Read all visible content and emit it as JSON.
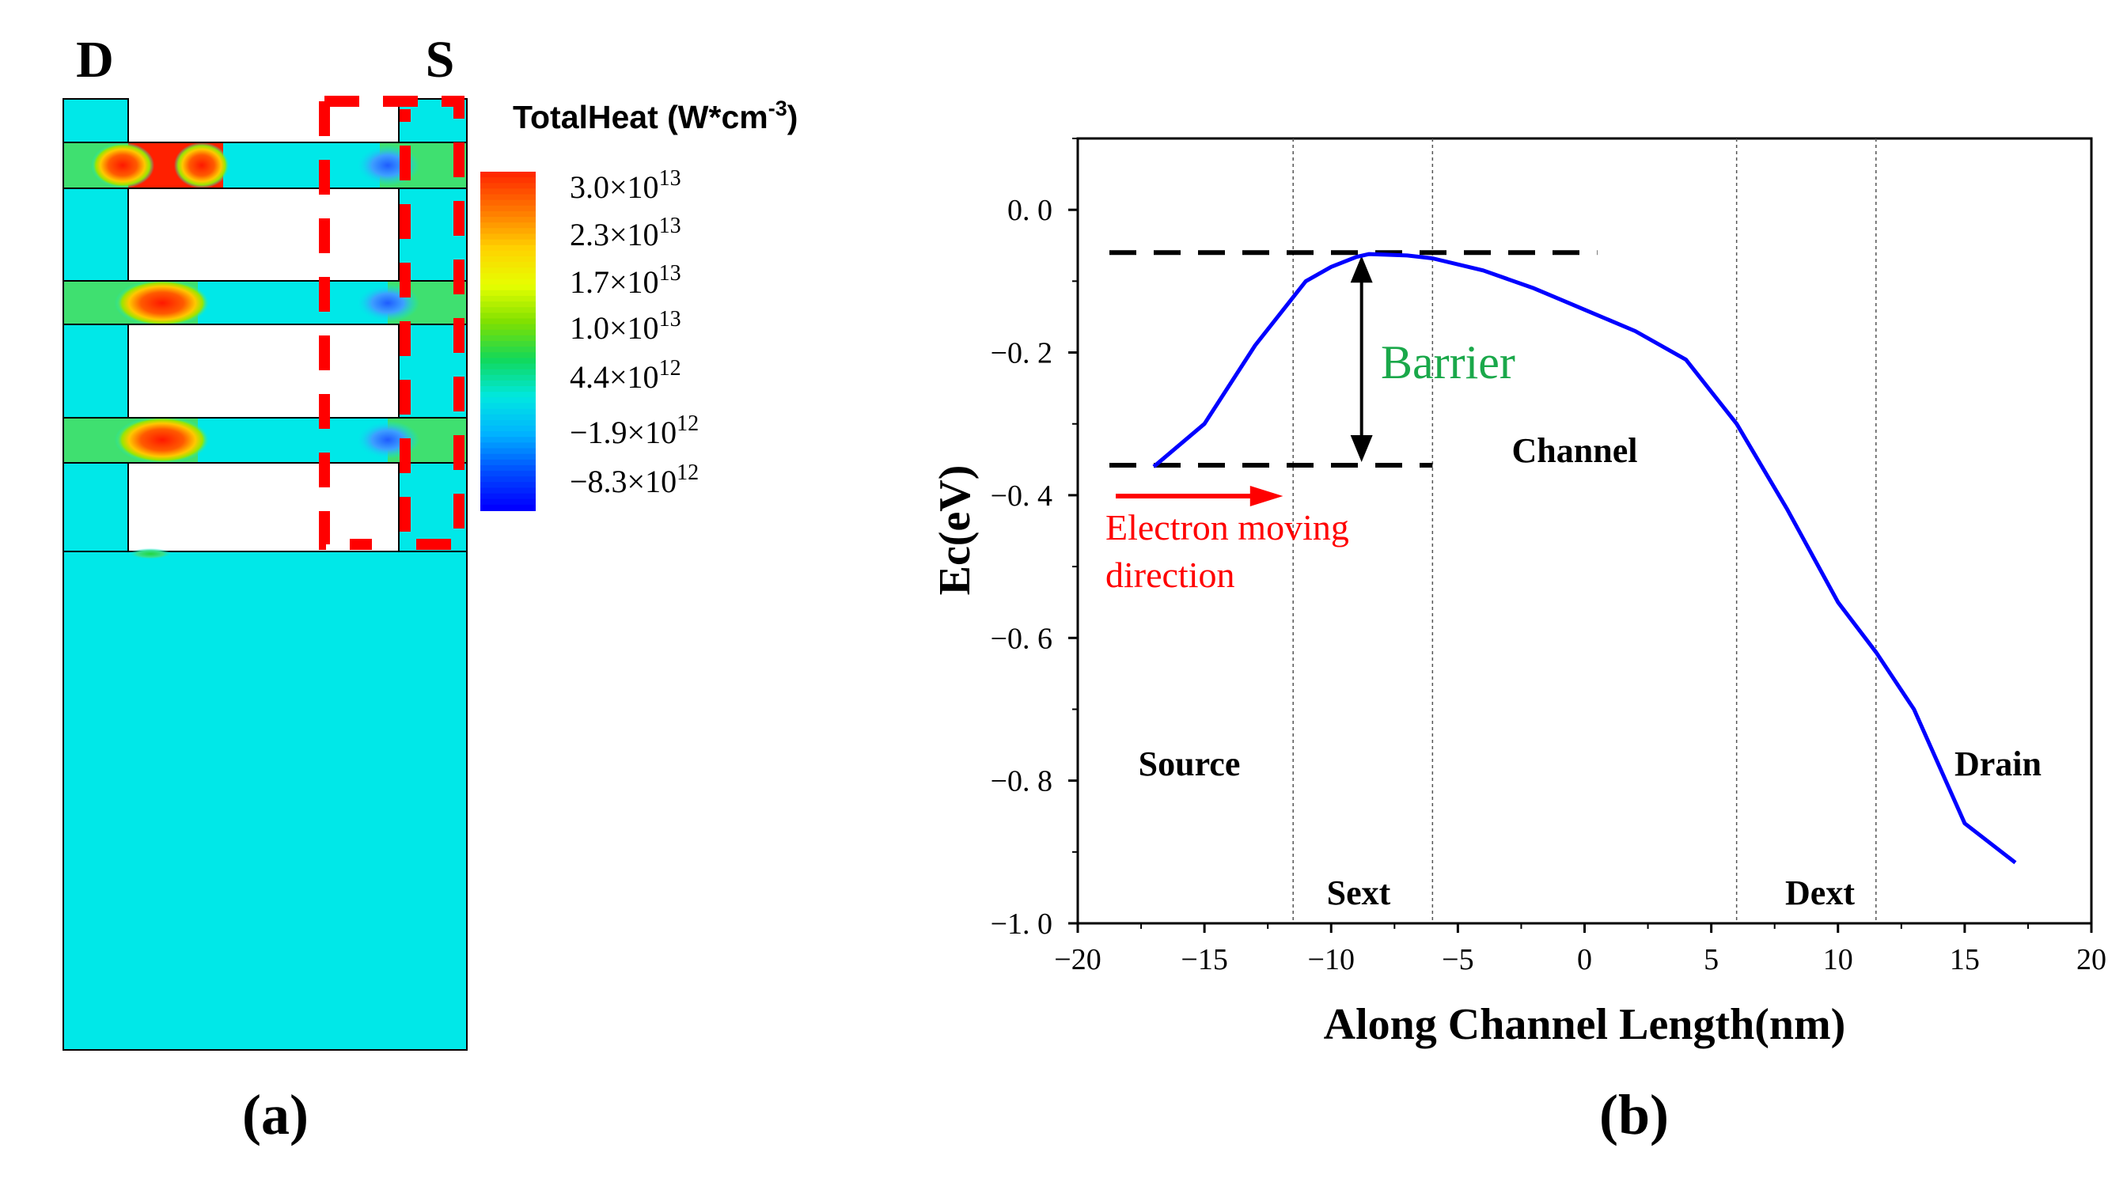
{
  "panel_a": {
    "label": "(a)",
    "left_terminal": "D",
    "right_terminal": "S",
    "colorbar": {
      "title_base": "TotalHeat (W*cm",
      "title_exp": "-3",
      "title_close": ")",
      "ticks": [
        {
          "m": "3.0×10",
          "e": "13"
        },
        {
          "m": "2.3×10",
          "e": "13"
        },
        {
          "m": "1.7×10",
          "e": "13"
        },
        {
          "m": "1.0×10",
          "e": "13"
        },
        {
          "m": "4.4×10",
          "e": "12"
        },
        {
          "m": "−1.9×10",
          "e": "12"
        },
        {
          "m": "−8.3×10",
          "e": "12"
        }
      ],
      "colors": [
        "#ff2a00",
        "#ff7a00",
        "#ffd200",
        "#e6ff00",
        "#7fe000",
        "#11d85a",
        "#00e8e0",
        "#00b4ff",
        "#0050ff",
        "#0000ff"
      ]
    },
    "colors": {
      "background": "#00e8e8",
      "highlight": "#ff0000",
      "outline": "#000000"
    }
  },
  "panel_b": {
    "label": "(b)",
    "regions": {
      "source": "Source",
      "sext": "Sext",
      "channel": "Channel",
      "dext": "Dext",
      "drain": "Drain"
    },
    "annotations": {
      "barrier": "Barrier",
      "electron_1": "Electron moving",
      "electron_2": "direction"
    },
    "colors": {
      "curve": "#0000ff",
      "barrier_text": "#1aa84a",
      "electron": "#ff0000"
    }
  },
  "chart_data": {
    "type": "line",
    "title": "",
    "xlabel": "Along Channel Length(nm)",
    "ylabel": "Ec(eV)",
    "xlim": [
      -20,
      20
    ],
    "ylim": [
      -1.0,
      0.1
    ],
    "xticks": [
      -20,
      -15,
      -10,
      -5,
      0,
      5,
      10,
      15,
      20
    ],
    "xtick_labels": [
      "−20",
      "−15",
      "−10",
      "−5",
      "0",
      "5",
      "10",
      "15",
      "20"
    ],
    "yticks": [
      0.0,
      -0.2,
      -0.4,
      -0.6,
      -0.8,
      -1.0
    ],
    "ytick_labels": [
      "0. 0",
      "−0. 2",
      "−0. 4",
      "−0. 6",
      "−0. 8",
      "−1. 0"
    ],
    "region_boundaries": [
      -11.5,
      -6,
      6,
      11.5
    ],
    "barrier_top": -0.06,
    "barrier_bottom": -0.358,
    "series": [
      {
        "name": "Ec",
        "x": [
          -17,
          -15,
          -13,
          -11,
          -10,
          -9,
          -8.5,
          -7,
          -6,
          -4,
          -2,
          0,
          2,
          4,
          6,
          8,
          10,
          11.5,
          13,
          15,
          17
        ],
        "y": [
          -0.36,
          -0.3,
          -0.19,
          -0.1,
          -0.08,
          -0.066,
          -0.062,
          -0.064,
          -0.068,
          -0.085,
          -0.11,
          -0.14,
          -0.17,
          -0.21,
          -0.3,
          -0.42,
          -0.55,
          -0.62,
          -0.7,
          -0.86,
          -0.915
        ]
      }
    ]
  }
}
